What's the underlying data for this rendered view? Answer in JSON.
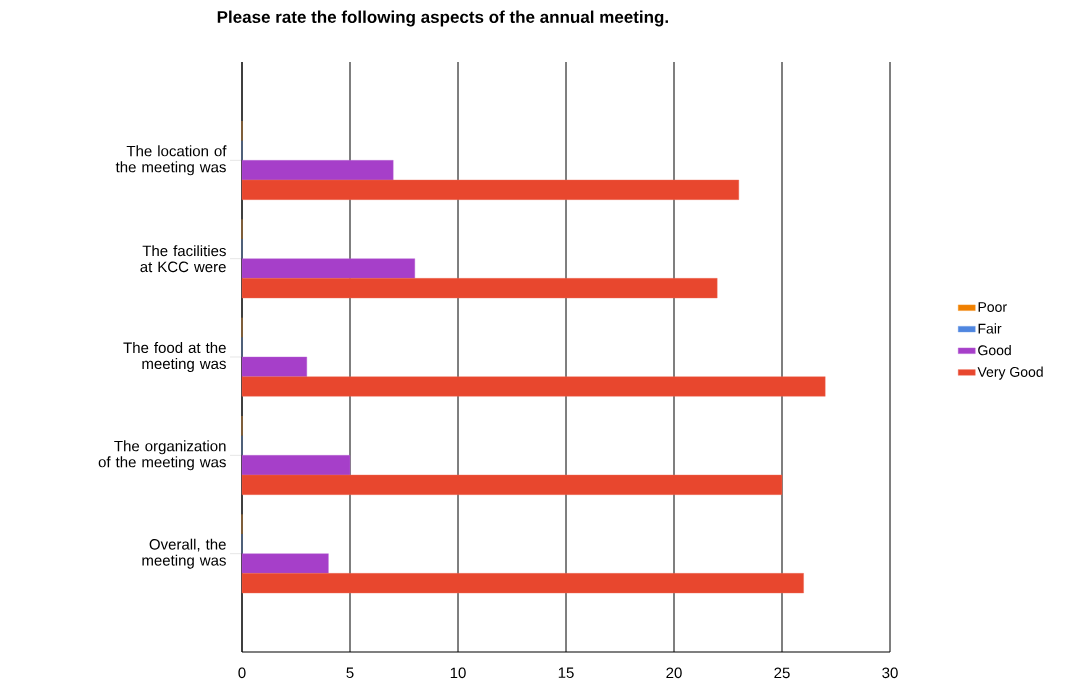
{
  "chart_data": {
    "type": "bar",
    "orientation": "horizontal",
    "title": "Please rate the following aspects of the annual meeting.",
    "categories": [
      "The location of the meeting was",
      "The facilities at KCC were",
      "The food at the meeting was",
      "The organization of the meeting was",
      "Overall, the meeting was"
    ],
    "series": [
      {
        "name": "Poor",
        "color": "#f08000",
        "values": [
          0,
          0,
          0,
          0,
          0
        ]
      },
      {
        "name": "Fair",
        "color": "#4f86e0",
        "values": [
          0,
          0,
          0,
          0,
          0
        ]
      },
      {
        "name": "Good",
        "color": "#a63fc9",
        "values": [
          7,
          8,
          3,
          5,
          4
        ]
      },
      {
        "name": "Very Good",
        "color": "#e8472e",
        "values": [
          23,
          22,
          27,
          25,
          26
        ]
      }
    ],
    "xlim": [
      0,
      30
    ],
    "xticks": [
      0,
      5,
      10,
      15,
      20,
      25,
      30
    ],
    "grid": "x",
    "legend": "right"
  }
}
